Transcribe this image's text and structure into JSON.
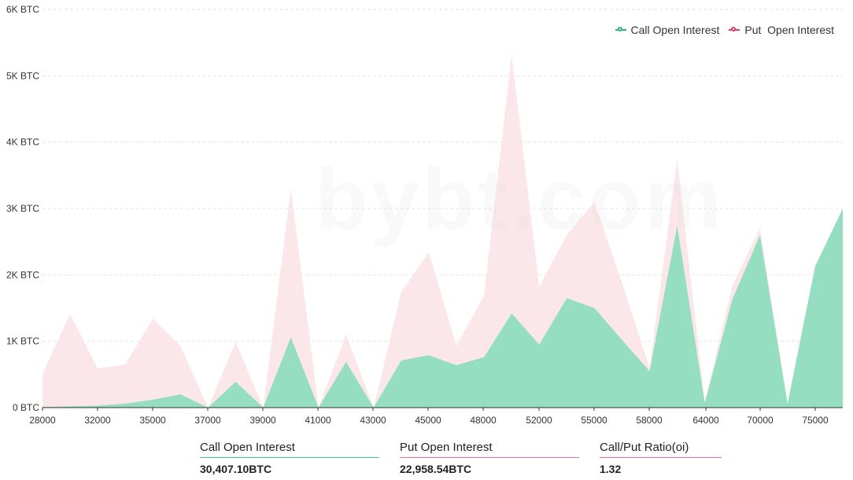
{
  "watermark": "bybt.com",
  "colors": {
    "call_fill": "#96dec1",
    "put_fill": "#fbe7ea",
    "call_accent": "#2fb47a",
    "put_accent": "#e0405d",
    "grid": "#e6e6e6"
  },
  "stats": {
    "call_label": "Call Open Interest",
    "call_value": "30,407.10BTC",
    "put_label": "Put Open Interest",
    "put_value": "22,958.54BTC",
    "ratio_label": "Call/Put Ratio(oi)",
    "ratio_value": "1.32"
  },
  "chart_data": {
    "type": "area",
    "title": "",
    "xlabel": "",
    "ylabel": "",
    "ylim": [
      0,
      6000
    ],
    "y_ticks": [
      0,
      1000,
      2000,
      3000,
      4000,
      5000,
      6000
    ],
    "y_tick_labels": [
      "0 BTC",
      "1K BTC",
      "2K BTC",
      "3K BTC",
      "4K BTC",
      "5K BTC",
      "6K BTC"
    ],
    "grid": true,
    "legend_position": "top-right",
    "x_tick_labels": [
      "28000",
      "32000",
      "35000",
      "37000",
      "39000",
      "41000",
      "43000",
      "45000",
      "48000",
      "52000",
      "55000",
      "58000",
      "64000",
      "70000",
      "75000"
    ],
    "categories": [
      "28000",
      "30000",
      "32000",
      "34000",
      "35000",
      "36000",
      "37000",
      "38000",
      "39000",
      "40000",
      "41000",
      "42000",
      "43000",
      "44000",
      "45000",
      "46000",
      "48000",
      "50000",
      "52000",
      "54000",
      "55000",
      "56000",
      "58000",
      "60000",
      "64000",
      "65000",
      "70000",
      "72000",
      "75000",
      "80000"
    ],
    "series": [
      {
        "name": "Call Open Interest",
        "color": "#96dec1",
        "values": [
          10,
          20,
          30,
          60,
          120,
          200,
          0,
          390,
          0,
          1060,
          0,
          690,
          0,
          710,
          790,
          640,
          760,
          1420,
          950,
          1650,
          1500,
          1020,
          550,
          2740,
          70,
          1630,
          2600,
          60,
          2130,
          3000
        ]
      },
      {
        "name": "Put  Open Interest",
        "color": "#fbe7ea",
        "values": [
          510,
          1410,
          590,
          650,
          1340,
          930,
          0,
          990,
          0,
          3300,
          0,
          1100,
          0,
          1740,
          2340,
          930,
          1690,
          5320,
          1820,
          2600,
          3100,
          1880,
          600,
          3740,
          90,
          1840,
          2700,
          60,
          2130,
          3000
        ]
      }
    ]
  }
}
